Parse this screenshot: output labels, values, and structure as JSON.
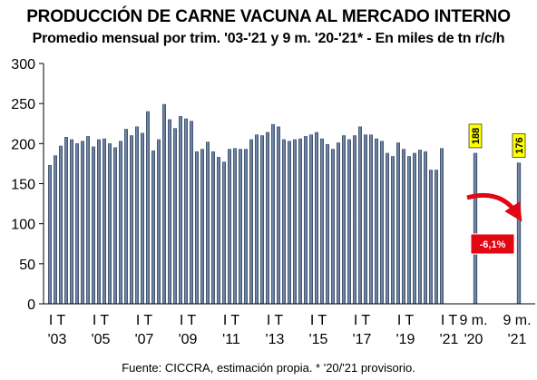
{
  "chart_data": {
    "type": "bar",
    "title": "PRODUCCIÓN DE CARNE VACUNA AL MERCADO INTERNO",
    "subtitle": "Promedio mensual por trim. '03-'21 y 9 m. '20-'21* - En miles de tn r/c/h",
    "source_note": "Fuente: CICCRA, estimación propia. * '20/'21 provisorio.",
    "ylim": [
      0,
      300
    ],
    "yticks": [
      "0",
      "50",
      "100",
      "150",
      "200",
      "250",
      "300"
    ],
    "quarterly": {
      "values": [
        173,
        185,
        197,
        208,
        205,
        200,
        203,
        209,
        196,
        205,
        206,
        200,
        195,
        203,
        218,
        210,
        221,
        213,
        240,
        191,
        205,
        249,
        230,
        219,
        234,
        231,
        228,
        190,
        193,
        202,
        190,
        183,
        177,
        193,
        194,
        193,
        193,
        205,
        211,
        210,
        214,
        224,
        221,
        205,
        203,
        205,
        206,
        209,
        211,
        214,
        206,
        199,
        193,
        201,
        210,
        205,
        210,
        221,
        211,
        211,
        206,
        203,
        188,
        184,
        201,
        193,
        184,
        188,
        192,
        190,
        167,
        167,
        194
      ]
    },
    "nine_months": {
      "categories": [
        "9 m. '20",
        "9 m. '21"
      ],
      "values": [
        188,
        176
      ],
      "labels": [
        "188",
        "176"
      ]
    },
    "change_label": "-6,1%",
    "xtick_labels": [
      {
        "top": "I T",
        "bottom": "'03"
      },
      {
        "top": "I T",
        "bottom": "'05"
      },
      {
        "top": "I T",
        "bottom": "'07"
      },
      {
        "top": "I T",
        "bottom": "'09"
      },
      {
        "top": "I T",
        "bottom": "'11"
      },
      {
        "top": "I T",
        "bottom": "'13"
      },
      {
        "top": "I T",
        "bottom": "'15"
      },
      {
        "top": "I T",
        "bottom": "'17"
      },
      {
        "top": "I T",
        "bottom": "'19"
      },
      {
        "top": "I T",
        "bottom": "'21"
      },
      {
        "top": "9 m.",
        "bottom": "'20"
      },
      {
        "top": "9 m.",
        "bottom": "'21"
      }
    ],
    "colors": {
      "bar": "#3a4f6e",
      "bar_highlight": "#6e86aa",
      "label_bg": "#ffff00",
      "change_box": "#e30613",
      "arrow": "#e30613"
    }
  }
}
